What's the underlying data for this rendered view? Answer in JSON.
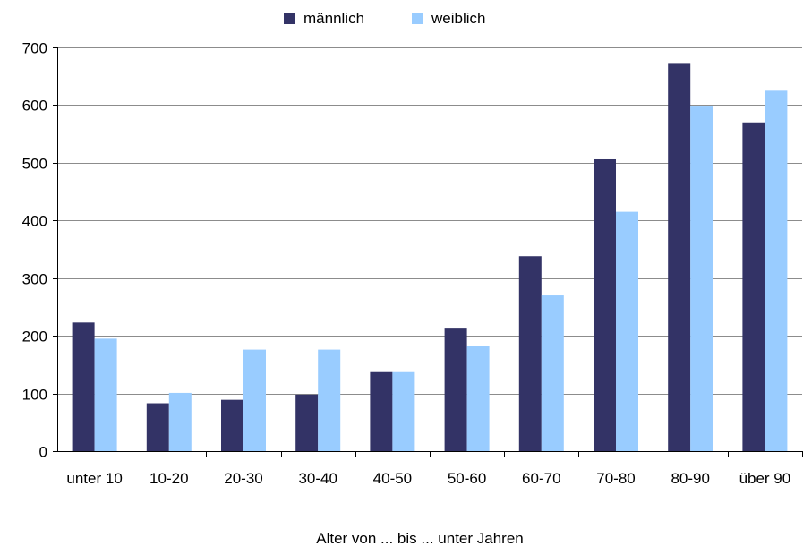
{
  "chart_data": {
    "type": "bar",
    "title": "",
    "xlabel": "Alter von ... bis ... unter Jahren",
    "ylabel": "",
    "categories": [
      "unter 10",
      "10-20",
      "20-30",
      "30-40",
      "40-50",
      "50-60",
      "60-70",
      "70-80",
      "80-90",
      "über 90"
    ],
    "series": [
      {
        "name": "männlich",
        "color": "#333366",
        "values": [
          223,
          83,
          89,
          98,
          137,
          214,
          338,
          506,
          673,
          570
        ]
      },
      {
        "name": "weiblich",
        "color": "#99ccff",
        "values": [
          195,
          101,
          176,
          176,
          137,
          182,
          270,
          415,
          599,
          625
        ]
      }
    ],
    "ylim": [
      0,
      700
    ],
    "yticks": [
      0,
      100,
      200,
      300,
      400,
      500,
      600,
      700
    ],
    "grid": true,
    "legend_position": "top"
  }
}
